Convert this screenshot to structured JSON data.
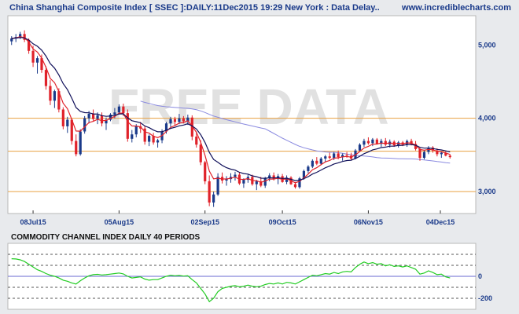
{
  "header": {
    "title": "China Shanghai Composite Index [ SSEC ]:DAILY:11Dec2015 19:29 New York : Data Delay..",
    "site": "www.incrediblecharts.com"
  },
  "watermark": "FREE DATA",
  "indicator_label": "COMMODITY CHANNEL INDEX DAILY 40 PERIODS",
  "chart_data": [
    {
      "type": "candlestick",
      "title": "China Shanghai Composite Index [ SSEC ]:DAILY:11Dec2015 19:29 New York : Data Delay..",
      "x_tick_labels": [
        "08Jul15",
        "05Aug15",
        "02Sep15",
        "09Oct15",
        "06Nov15",
        "04Dec15"
      ],
      "y_tick_labels": [
        "3,000",
        "4,000",
        "5,000"
      ],
      "ylim": [
        2700,
        5400
      ],
      "horizontal_lines": [
        3000,
        3550,
        4000
      ],
      "colors": {
        "up": "#1a3a8a",
        "down": "#e0222a",
        "ma_short": "#e0222a",
        "ma_mid": "#10105a",
        "ma_long": "#8a8ae0",
        "hline": "#e8a040"
      },
      "ohlc": [
        [
          5050,
          5120,
          5000,
          5090
        ],
        [
          5090,
          5150,
          5040,
          5110
        ],
        [
          5110,
          5180,
          5080,
          5150
        ],
        [
          5150,
          5200,
          5040,
          5070
        ],
        [
          5070,
          5090,
          4880,
          4920
        ],
        [
          4920,
          4990,
          4700,
          4760
        ],
        [
          4760,
          4850,
          4610,
          4820
        ],
        [
          4820,
          4870,
          4620,
          4660
        ],
        [
          4660,
          4710,
          4390,
          4440
        ],
        [
          4440,
          4520,
          4180,
          4240
        ],
        [
          4240,
          4390,
          4140,
          4370
        ],
        [
          4370,
          4410,
          4080,
          4120
        ],
        [
          4120,
          4150,
          3850,
          3890
        ],
        [
          3890,
          4020,
          3800,
          3980
        ],
        [
          3980,
          4000,
          3640,
          3690
        ],
        [
          3690,
          3780,
          3480,
          3510
        ],
        [
          3510,
          3850,
          3490,
          3820
        ],
        [
          3820,
          4030,
          3790,
          4000
        ],
        [
          4000,
          4100,
          3930,
          4060
        ],
        [
          4060,
          4120,
          3960,
          3990
        ],
        [
          3990,
          4080,
          3920,
          4040
        ],
        [
          4040,
          4080,
          3890,
          3930
        ],
        [
          3930,
          4010,
          3840,
          3980
        ],
        [
          3980,
          4070,
          3960,
          4050
        ],
        [
          4050,
          4140,
          4000,
          4080
        ],
        [
          4080,
          4190,
          4050,
          4160
        ],
        [
          4160,
          4200,
          4030,
          4070
        ],
        [
          4070,
          4120,
          3680,
          3720
        ],
        [
          3720,
          3840,
          3670,
          3780
        ],
        [
          3780,
          3920,
          3740,
          3890
        ],
        [
          3890,
          3950,
          3800,
          3860
        ],
        [
          3860,
          3900,
          3640,
          3680
        ],
        [
          3680,
          3780,
          3620,
          3760
        ],
        [
          3760,
          3800,
          3640,
          3670
        ],
        [
          3670,
          3720,
          3600,
          3700
        ],
        [
          3700,
          3850,
          3660,
          3820
        ],
        [
          3820,
          3950,
          3790,
          3930
        ],
        [
          3930,
          4020,
          3880,
          3990
        ],
        [
          3990,
          4020,
          3900,
          3950
        ],
        [
          3950,
          4060,
          3920,
          4000
        ],
        [
          4000,
          4030,
          3930,
          3960
        ],
        [
          3960,
          4050,
          3910,
          4010
        ],
        [
          4010,
          4040,
          3700,
          3750
        ],
        [
          3750,
          3820,
          3600,
          3640
        ],
        [
          3640,
          3700,
          3360,
          3400
        ],
        [
          3400,
          3420,
          3100,
          3140
        ],
        [
          3140,
          3220,
          2800,
          2850
        ],
        [
          2850,
          3000,
          2790,
          2960
        ],
        [
          2960,
          3250,
          2940,
          3200
        ],
        [
          3200,
          3260,
          3110,
          3150
        ],
        [
          3150,
          3210,
          3080,
          3170
        ],
        [
          3170,
          3250,
          3120,
          3200
        ],
        [
          3200,
          3270,
          3150,
          3230
        ],
        [
          3230,
          3260,
          3090,
          3110
        ],
        [
          3110,
          3180,
          3050,
          3160
        ],
        [
          3160,
          3230,
          3120,
          3200
        ],
        [
          3200,
          3230,
          3080,
          3100
        ],
        [
          3100,
          3160,
          3020,
          3140
        ],
        [
          3140,
          3200,
          3060,
          3080
        ],
        [
          3080,
          3200,
          3050,
          3180
        ],
        [
          3180,
          3250,
          3140,
          3220
        ],
        [
          3220,
          3260,
          3150,
          3170
        ],
        [
          3170,
          3240,
          3100,
          3210
        ],
        [
          3210,
          3240,
          3120,
          3130
        ],
        [
          3130,
          3220,
          3100,
          3190
        ],
        [
          3190,
          3210,
          3090,
          3100
        ],
        [
          3100,
          3130,
          3040,
          3060
        ],
        [
          3060,
          3200,
          3040,
          3180
        ],
        [
          3180,
          3300,
          3160,
          3280
        ],
        [
          3280,
          3360,
          3250,
          3340
        ],
        [
          3340,
          3440,
          3320,
          3420
        ],
        [
          3420,
          3470,
          3360,
          3380
        ],
        [
          3380,
          3470,
          3360,
          3450
        ],
        [
          3450,
          3500,
          3400,
          3480
        ],
        [
          3480,
          3530,
          3440,
          3460
        ],
        [
          3460,
          3540,
          3430,
          3520
        ],
        [
          3520,
          3560,
          3440,
          3470
        ],
        [
          3470,
          3520,
          3420,
          3500
        ],
        [
          3500,
          3540,
          3460,
          3490
        ],
        [
          3490,
          3530,
          3430,
          3450
        ],
        [
          3450,
          3580,
          3440,
          3560
        ],
        [
          3560,
          3660,
          3540,
          3640
        ],
        [
          3640,
          3720,
          3610,
          3690
        ],
        [
          3690,
          3740,
          3640,
          3660
        ],
        [
          3660,
          3730,
          3620,
          3710
        ],
        [
          3710,
          3730,
          3640,
          3650
        ],
        [
          3650,
          3720,
          3610,
          3690
        ],
        [
          3690,
          3730,
          3620,
          3640
        ],
        [
          3640,
          3710,
          3600,
          3680
        ],
        [
          3680,
          3700,
          3610,
          3630
        ],
        [
          3630,
          3690,
          3600,
          3670
        ],
        [
          3670,
          3690,
          3620,
          3640
        ],
        [
          3640,
          3710,
          3610,
          3690
        ],
        [
          3690,
          3720,
          3630,
          3650
        ],
        [
          3650,
          3690,
          3560,
          3580
        ],
        [
          3580,
          3600,
          3420,
          3460
        ],
        [
          3460,
          3560,
          3440,
          3540
        ],
        [
          3540,
          3620,
          3510,
          3600
        ],
        [
          3600,
          3620,
          3530,
          3560
        ],
        [
          3560,
          3590,
          3480,
          3510
        ],
        [
          3510,
          3550,
          3460,
          3530
        ],
        [
          3530,
          3550,
          3480,
          3490
        ],
        [
          3490,
          3510,
          3450,
          3470
        ]
      ]
    },
    {
      "type": "line",
      "title": "COMMODITY CHANNEL INDEX DAILY 40 PERIODS",
      "y_tick_labels": [
        "0",
        "-200"
      ],
      "ylim": [
        -300,
        300
      ],
      "reference_lines": [
        200,
        100,
        0,
        -100,
        -200
      ],
      "colors": {
        "cci": "#22cc22",
        "zero": "#6a6ad0",
        "ref": "#555555"
      },
      "values": [
        160,
        158,
        150,
        135,
        110,
        85,
        60,
        45,
        25,
        10,
        0,
        -15,
        -35,
        -45,
        -60,
        -70,
        -40,
        -15,
        5,
        15,
        18,
        12,
        15,
        20,
        25,
        30,
        22,
        0,
        -15,
        -10,
        -5,
        -25,
        -35,
        -30,
        -30,
        -15,
        0,
        10,
        5,
        8,
        2,
        5,
        -30,
        -60,
        -110,
        -160,
        -230,
        -200,
        -140,
        -110,
        -100,
        -90,
        -85,
        -95,
        -90,
        -80,
        -90,
        -95,
        -90,
        -75,
        -65,
        -70,
        -60,
        -70,
        -55,
        -60,
        -70,
        -50,
        -30,
        -10,
        10,
        5,
        15,
        25,
        20,
        35,
        25,
        40,
        45,
        40,
        80,
        110,
        130,
        115,
        125,
        110,
        115,
        95,
        105,
        90,
        95,
        85,
        95,
        80,
        65,
        20,
        30,
        50,
        35,
        15,
        20,
        -5,
        -15
      ]
    }
  ]
}
